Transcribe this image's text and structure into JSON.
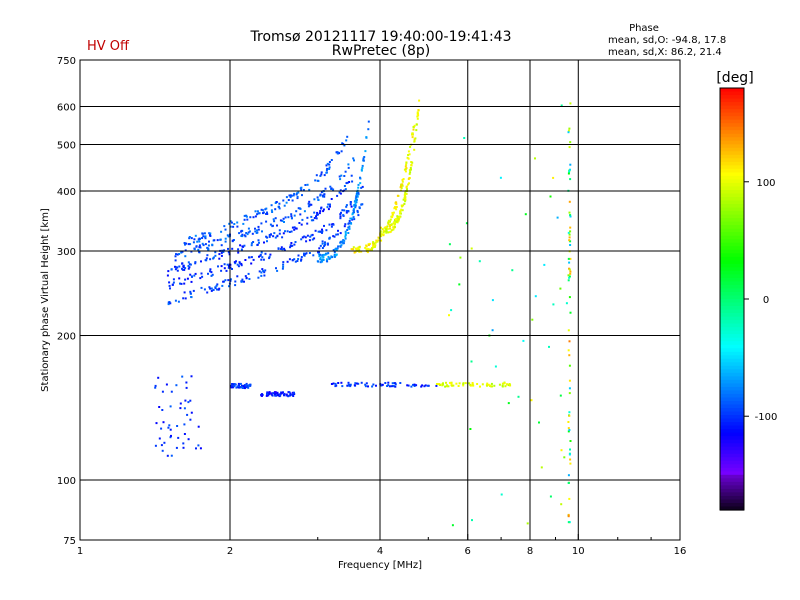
{
  "chart_data": {
    "type": "scatter",
    "title": "Tromsø 20121117 19:40:00-19:41:43",
    "subtitle": "RwPretec (8p)",
    "status": "HV Off",
    "xlabel": "Frequency [MHz]",
    "ylabel": "Stationary phase Virtual Height [km]",
    "x_scale": "log",
    "y_scale": "log",
    "xlim": [
      1,
      16
    ],
    "ylim": [
      75,
      750
    ],
    "x_ticks": [
      "1",
      "2",
      "4",
      "6",
      "8",
      "10",
      "16"
    ],
    "y_ticks": [
      "75",
      "100",
      "200",
      "300",
      "400",
      "500",
      "600",
      "750"
    ],
    "grid": true,
    "stats": {
      "heading": "Phase",
      "line1": "mean, sd,O: -94.8, 17.8",
      "line2": "mean, sd,X:  86.2, 21.4"
    },
    "colorbar": {
      "unit": "[deg]",
      "ticks": [
        "100",
        "0",
        "-100"
      ],
      "range": [
        -180,
        180
      ]
    },
    "clusters": [
      {
        "type": "band",
        "x0": 1.5,
        "x1": 3.7,
        "y0": 236,
        "y1": 375,
        "phase": -95
      },
      {
        "type": "band",
        "x0": 1.5,
        "x1": 3.7,
        "y0": 255,
        "y1": 405,
        "phase": -100
      },
      {
        "type": "band",
        "x0": 1.5,
        "x1": 3.6,
        "y0": 272,
        "y1": 440,
        "phase": -98
      },
      {
        "type": "band",
        "x0": 1.55,
        "x1": 3.55,
        "y0": 292,
        "y1": 470,
        "phase": -90
      },
      {
        "type": "band",
        "x0": 1.6,
        "x1": 3.45,
        "y0": 310,
        "y1": 520,
        "phase": -88
      },
      {
        "type": "curve",
        "x0": 3.0,
        "x1": 3.8,
        "y0": 290,
        "y1": 560,
        "phase": -75
      },
      {
        "type": "curve",
        "x0": 3.5,
        "x1": 4.7,
        "y0": 300,
        "y1": 560,
        "phase": 105
      },
      {
        "type": "curve",
        "x0": 4.0,
        "x1": 4.8,
        "y0": 330,
        "y1": 620,
        "phase": 100
      },
      {
        "type": "hline",
        "x0": 3.2,
        "x1": 5.2,
        "y": 158,
        "phase": -100
      },
      {
        "type": "hline",
        "x0": 5.2,
        "x1": 7.4,
        "y": 158,
        "phase": 95
      },
      {
        "type": "hline",
        "x0": 2.0,
        "x1": 2.2,
        "y": 157,
        "phase": -100
      },
      {
        "type": "hline",
        "x0": 2.3,
        "x1": 2.7,
        "y": 151,
        "phase": -110
      },
      {
        "type": "blob",
        "x0": 1.4,
        "x1": 1.75,
        "y0": 112,
        "y1": 165,
        "phase": -100
      },
      {
        "type": "vline",
        "x": 9.6,
        "y0": 80,
        "y1": 610,
        "phase": 40
      },
      {
        "type": "scatter",
        "x0": 5.5,
        "x1": 9.5,
        "y0": 80,
        "y1": 620,
        "phase": 30,
        "n": 45
      }
    ]
  }
}
